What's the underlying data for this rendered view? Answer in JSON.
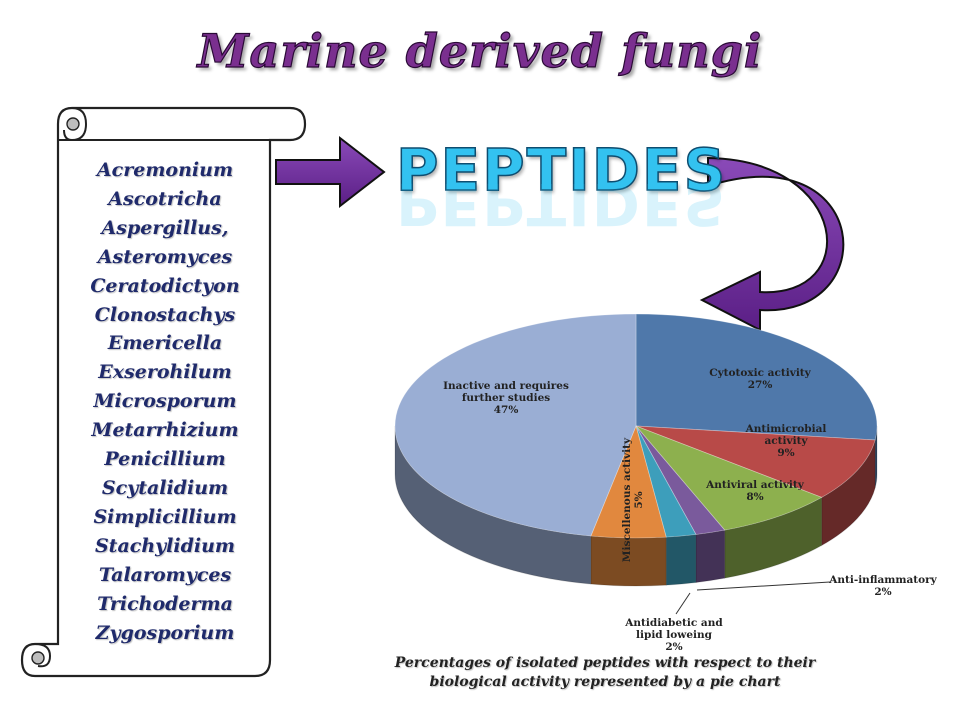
{
  "title": "Marine derived fungi",
  "peptides_word": "PEPTIDES",
  "genera": [
    "Acremonium",
    "Ascotricha",
    "Aspergillus,",
    "Asteromyces",
    "Ceratodictyon",
    "Clonostachys",
    "Emericella",
    "Exserohilum",
    "Microsporum",
    "Metarrhizium",
    "Penicillium",
    "Scytalidium",
    "Simplicillium",
    "Stachylidium",
    "Talaromyces",
    "Trichoderma",
    "Zygosporium"
  ],
  "caption_line1": "Percentages of isolated peptides with respect to their",
  "caption_line2": "biological activity represented by a pie chart",
  "chart_data": {
    "type": "pie",
    "slices": [
      {
        "label": "Cytotoxic activity",
        "value": 27,
        "percent_label": "27%",
        "color": "#4f78aa"
      },
      {
        "label": "Antimicrobial activity",
        "value": 9,
        "percent_label": "9%",
        "color": "#b84a48"
      },
      {
        "label": "Antiviral activity",
        "value": 8,
        "percent_label": "8%",
        "color": "#8db04e"
      },
      {
        "label": "Anti-inflammatory",
        "value": 2,
        "percent_label": "2%",
        "color": "#7a5a9c"
      },
      {
        "label": "Antidiabetic and lipid loweing",
        "value": 2,
        "percent_label": "2%",
        "color": "#3d9ebb"
      },
      {
        "label": "Miscellenous activity",
        "value": 5,
        "percent_label": "5%",
        "color": "#e1883e"
      },
      {
        "label": "Inactive and requires further studies",
        "value": 47,
        "percent_label": "47%",
        "color": "#9aaed4"
      }
    ]
  }
}
